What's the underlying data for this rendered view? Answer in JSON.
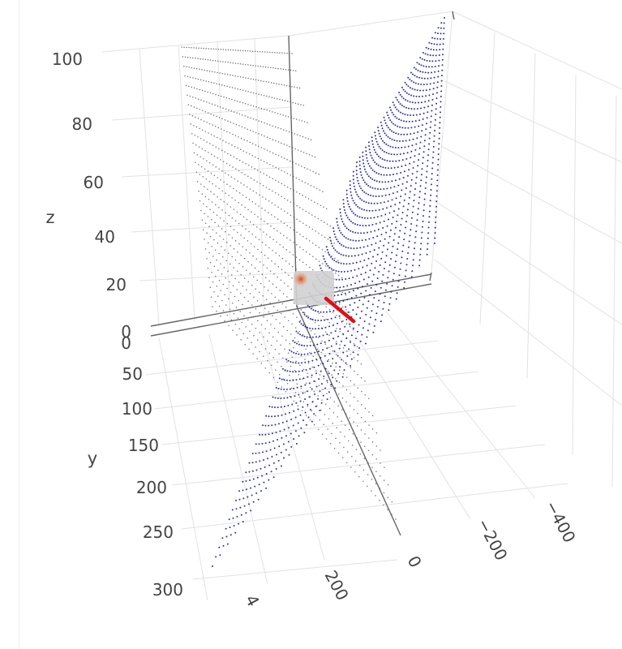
{
  "chart_data": {
    "type": "scatter",
    "projection": "3d",
    "title": "",
    "grid": true,
    "legend": "none",
    "axes": {
      "x": {
        "title": "",
        "ticks": [
          "4",
          "200",
          "0",
          "−200",
          "−400"
        ]
      },
      "y": {
        "title": "y",
        "ticks": [
          "0",
          "50",
          "100",
          "150",
          "200",
          "250",
          "300"
        ]
      },
      "z": {
        "title": "z",
        "ticks": [
          "0",
          "20",
          "40",
          "60",
          "80",
          "100"
        ]
      }
    },
    "colors": {
      "vertical_plane_points": "#555566",
      "diagonal_plane_points": "#1a1aa0",
      "pointer_line": "#e01010",
      "marker_glow": "#e85a2a",
      "marker_box": "#d0d0d0",
      "grid": "#e2e2e2",
      "axis_line": "#666666"
    },
    "series": [
      {
        "name": "",
        "kind": "point-grid",
        "plane": "vertical"
      },
      {
        "name": "",
        "kind": "point-grid",
        "plane": "diagonal"
      },
      {
        "name": "",
        "kind": "line"
      },
      {
        "name": "",
        "kind": "marker"
      }
    ]
  }
}
